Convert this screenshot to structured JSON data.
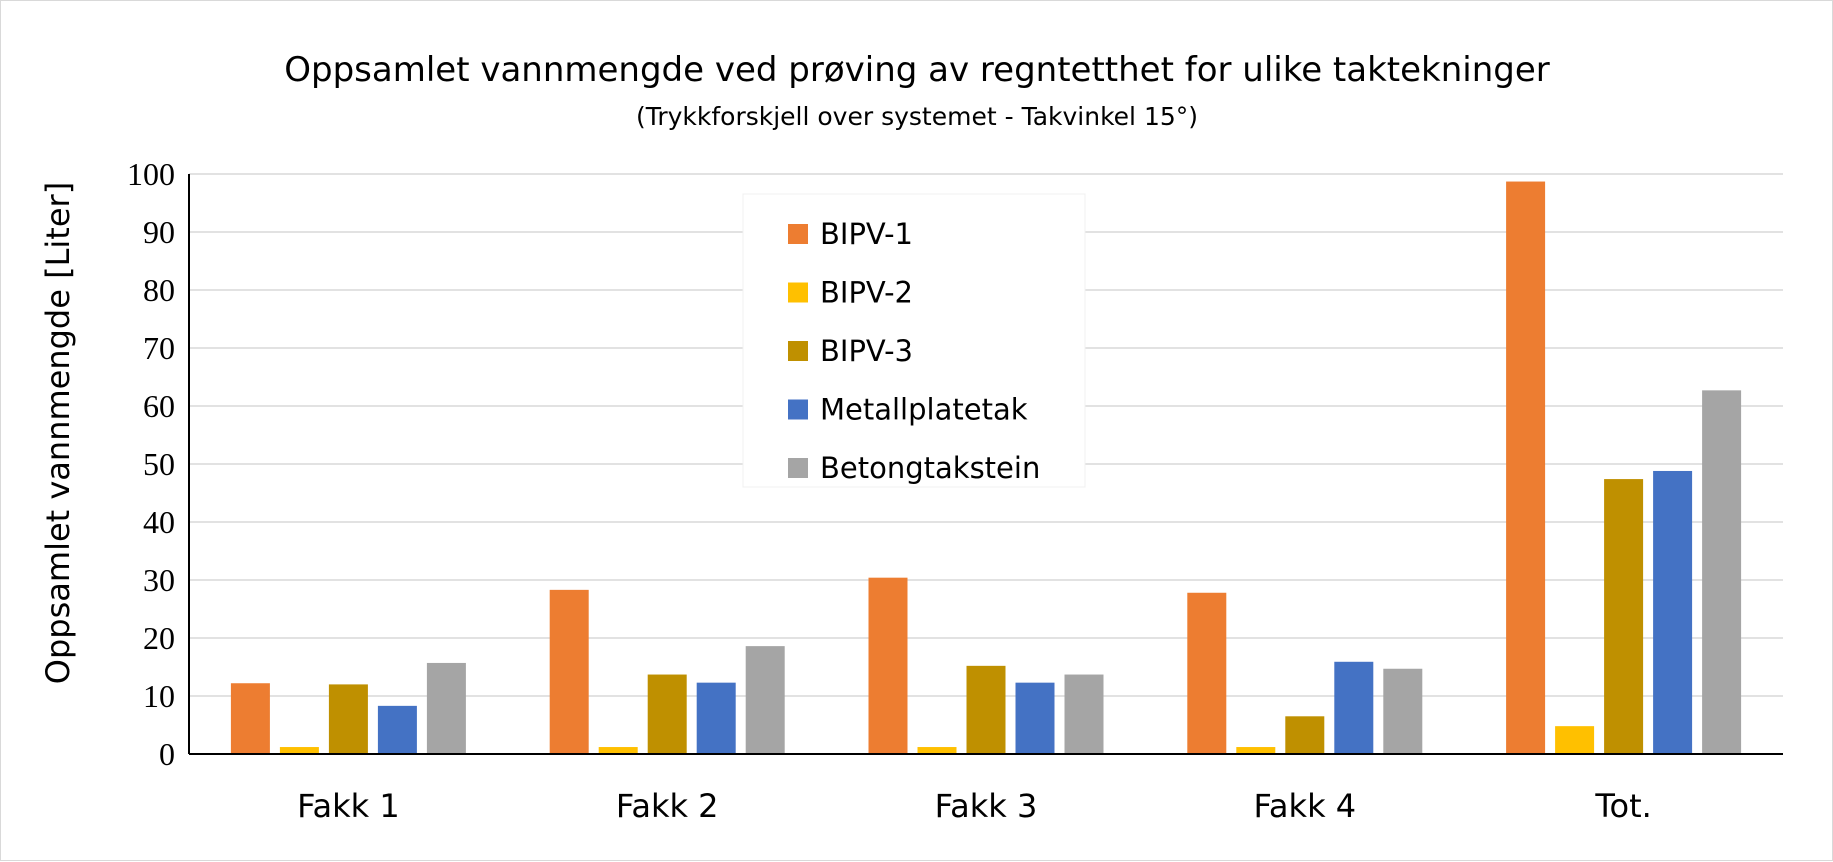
{
  "chart_data": {
    "type": "bar",
    "title": "Oppsamlet vannmengde ved prøving av regntetthet for ulike taktekninger",
    "subtitle": "(Trykkforskjell over systemet - Takvinkel 15°)",
    "xlabel": "",
    "ylabel": "Oppsamlet vannmengde [Liter]",
    "ylim": [
      0,
      100
    ],
    "yticks": [
      "0",
      "10",
      "20",
      "30",
      "40",
      "50",
      "60",
      "70",
      "80",
      "90",
      "100"
    ],
    "grid": true,
    "legend_position": "top-center",
    "categories": [
      "Fakk 1",
      "Fakk 2",
      "Fakk 3",
      "Fakk 4",
      "Tot."
    ],
    "series": [
      {
        "name": "BIPV-1",
        "color": "#ED7D31",
        "values": [
          12.2,
          28.3,
          30.4,
          27.8,
          98.7
        ]
      },
      {
        "name": "BIPV-2",
        "color": "#FFC000",
        "values": [
          1.2,
          1.2,
          1.2,
          1.2,
          4.8
        ]
      },
      {
        "name": "BIPV-3",
        "color": "#BF9000",
        "values": [
          12.0,
          13.7,
          15.2,
          6.5,
          47.4
        ]
      },
      {
        "name": "Metallplatetak",
        "color": "#4472C4",
        "values": [
          8.3,
          12.3,
          12.3,
          15.9,
          48.8
        ]
      },
      {
        "name": "Betongtakstein",
        "color": "#A5A5A5",
        "values": [
          15.7,
          18.6,
          13.7,
          14.7,
          62.7
        ]
      }
    ]
  }
}
